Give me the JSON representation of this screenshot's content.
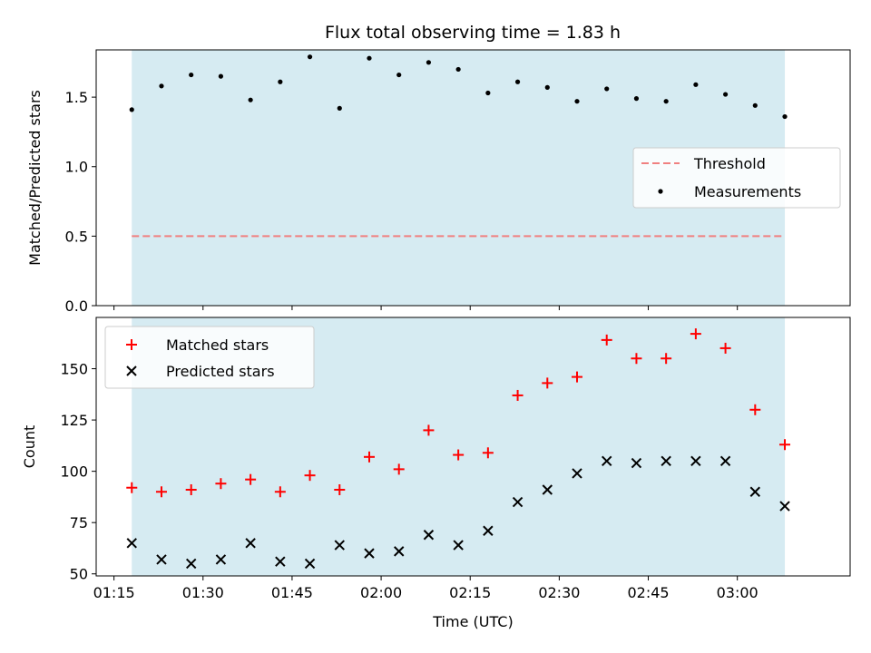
{
  "title": "Flux total observing time = 1.83 h",
  "colors": {
    "shade": "#add8e6",
    "threshold": "#f08080",
    "measurement": "#000000",
    "matched": "#ff0000",
    "predicted": "#000000"
  },
  "chart_data": [
    {
      "type": "scatter",
      "ylabel": "Matched/Predicted stars",
      "xlim": [
        "01:12",
        "03:19"
      ],
      "ylim": [
        0,
        1.84
      ],
      "yticks": [
        0.0,
        0.5,
        1.0,
        1.5
      ],
      "ytick_labels": [
        "0.0",
        "0.5",
        "1.0",
        "1.5"
      ],
      "shaded_span": [
        "01:18",
        "03:08"
      ],
      "threshold": 0.5,
      "legend_position": "center-right",
      "series": [
        {
          "name": "Threshold",
          "kind": "line",
          "style": "dashed",
          "color": "#f08080",
          "x": [
            "01:18",
            "03:08"
          ],
          "y": [
            0.5,
            0.5
          ]
        },
        {
          "name": "Measurements",
          "kind": "scatter",
          "marker": "dot",
          "color": "#000000",
          "x": [
            "01:18",
            "01:23",
            "01:28",
            "01:33",
            "01:38",
            "01:43",
            "01:48",
            "01:53",
            "01:58",
            "02:03",
            "02:08",
            "02:13",
            "02:18",
            "02:23",
            "02:28",
            "02:33",
            "02:38",
            "02:43",
            "02:48",
            "02:53",
            "02:58",
            "03:03",
            "03:08"
          ],
          "y": [
            1.41,
            1.58,
            1.66,
            1.65,
            1.48,
            1.61,
            1.79,
            1.42,
            1.78,
            1.66,
            1.75,
            1.7,
            1.53,
            1.61,
            1.57,
            1.47,
            1.56,
            1.49,
            1.47,
            1.59,
            1.52,
            1.44,
            1.36
          ]
        }
      ]
    },
    {
      "type": "scatter",
      "xlabel": "Time (UTC)",
      "ylabel": "Count",
      "xlim": [
        "01:12",
        "03:19"
      ],
      "ylim": [
        49,
        175
      ],
      "yticks": [
        50,
        75,
        100,
        125,
        150
      ],
      "xticks": [
        "01:15",
        "01:30",
        "01:45",
        "02:00",
        "02:15",
        "02:30",
        "02:45",
        "03:00"
      ],
      "shaded_span": [
        "01:18",
        "03:08"
      ],
      "legend_position": "upper-left",
      "series": [
        {
          "name": "Matched stars",
          "kind": "scatter",
          "marker": "plus",
          "color": "#ff0000",
          "x": [
            "01:18",
            "01:23",
            "01:28",
            "01:33",
            "01:38",
            "01:43",
            "01:48",
            "01:53",
            "01:58",
            "02:03",
            "02:08",
            "02:13",
            "02:18",
            "02:23",
            "02:28",
            "02:33",
            "02:38",
            "02:43",
            "02:48",
            "02:53",
            "02:58",
            "03:03",
            "03:08"
          ],
          "y": [
            92,
            90,
            91,
            94,
            96,
            90,
            98,
            91,
            107,
            101,
            120,
            108,
            109,
            137,
            143,
            146,
            164,
            155,
            155,
            167,
            160,
            130,
            113
          ]
        },
        {
          "name": "Predicted stars",
          "kind": "scatter",
          "marker": "x",
          "color": "#000000",
          "x": [
            "01:18",
            "01:23",
            "01:28",
            "01:33",
            "01:38",
            "01:43",
            "01:48",
            "01:53",
            "01:58",
            "02:03",
            "02:08",
            "02:13",
            "02:18",
            "02:23",
            "02:28",
            "02:33",
            "02:38",
            "02:43",
            "02:48",
            "02:53",
            "02:58",
            "03:03",
            "03:08"
          ],
          "y": [
            65,
            57,
            55,
            57,
            65,
            56,
            55,
            64,
            60,
            61,
            69,
            64,
            71,
            85,
            91,
            99,
            105,
            104,
            105,
            105,
            105,
            90,
            83
          ]
        }
      ]
    }
  ]
}
